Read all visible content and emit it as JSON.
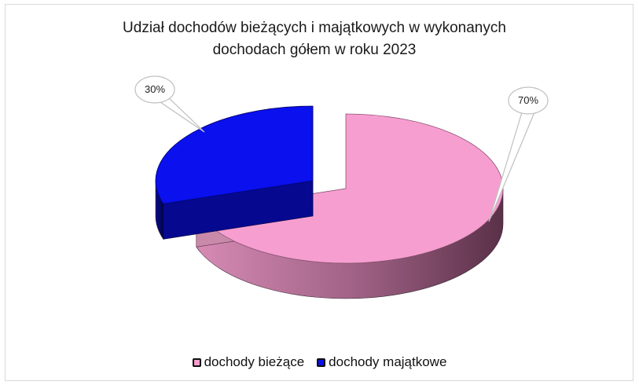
{
  "chart_data": {
    "type": "pie",
    "title_lines": [
      "Udział dochodów bieżących i majątkowych w wykonanych",
      "dochodach gółem w roku 2023"
    ],
    "slices": [
      {
        "name": "dochody bieżące",
        "value": 70,
        "label": "70%",
        "color": "#f79ed0"
      },
      {
        "name": "dochody majątkowe",
        "value": 30,
        "label": "30%",
        "color": "#0a10ee"
      }
    ],
    "three_d": true,
    "exploded": true,
    "legend_position": "bottom"
  }
}
